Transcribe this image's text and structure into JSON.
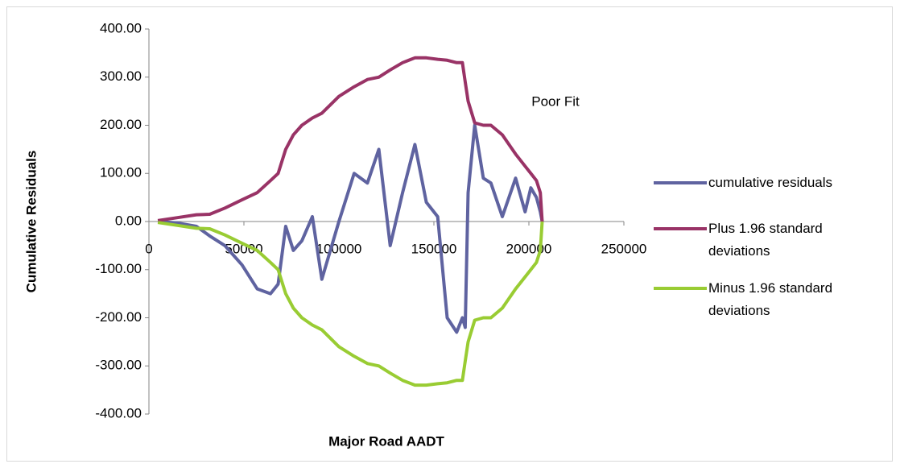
{
  "chart_data": {
    "type": "line",
    "x_label": "Major Road AADT",
    "y_label": "Cumulative Residuals",
    "annotations": [
      "Poor Fit"
    ],
    "legend": "right",
    "x": [
      4700,
      15000,
      25000,
      32000,
      40000,
      49000,
      57000,
      64000,
      68000,
      72000,
      76000,
      80500,
      86000,
      91000,
      100000,
      108000,
      115000,
      121000,
      127000,
      133500,
      140000,
      146000,
      152000,
      157000,
      162000,
      165000,
      166500,
      168000,
      171500,
      176000,
      180000,
      186000,
      193000,
      198000,
      201000,
      204000,
      206000,
      207000
    ],
    "series": [
      {
        "name": "cumulative residuals",
        "color": "#5f63a0",
        "values": [
          0,
          -3,
          -10,
          -30,
          -50,
          -90,
          -140,
          -150,
          -130,
          -10,
          -60,
          -40,
          10,
          -120,
          0,
          100,
          80,
          150,
          -50,
          60,
          160,
          40,
          10,
          -200,
          -230,
          -200,
          -220,
          60,
          200,
          90,
          80,
          10,
          90,
          20,
          70,
          50,
          20,
          0
        ]
      },
      {
        "name": "Plus 1.96 standard deviations",
        "color": "#993366",
        "values": [
          2,
          8,
          14,
          15,
          28,
          45,
          60,
          85,
          100,
          150,
          180,
          200,
          215,
          225,
          260,
          280,
          295,
          300,
          315,
          330,
          340,
          340,
          337,
          335,
          330,
          330,
          290,
          250,
          205,
          200,
          200,
          180,
          140,
          115,
          100,
          85,
          60,
          0
        ]
      },
      {
        "name": "Minus 1.96 standard deviations",
        "color": "#99cc33",
        "values": [
          -2,
          -8,
          -14,
          -15,
          -28,
          -45,
          -60,
          -85,
          -100,
          -150,
          -180,
          -200,
          -215,
          -225,
          -260,
          -280,
          -295,
          -300,
          -315,
          -330,
          -340,
          -340,
          -337,
          -335,
          -330,
          -330,
          -290,
          -250,
          -205,
          -200,
          -200,
          -180,
          -140,
          -115,
          -100,
          -85,
          -60,
          0
        ]
      }
    ],
    "xlim": [
      0,
      250000
    ],
    "xticks": [
      0,
      50000,
      100000,
      150000,
      200000,
      250000
    ],
    "ylim": [
      -400,
      400
    ],
    "yticks": [
      {
        "value": -400,
        "label": "-400.00"
      },
      {
        "value": -300,
        "label": "-300.00"
      },
      {
        "value": -200,
        "label": "-200.00"
      },
      {
        "value": -100,
        "label": "-100.00"
      },
      {
        "value": 0,
        "label": "0.00"
      },
      {
        "value": 100,
        "label": "100.00"
      },
      {
        "value": 200,
        "label": "200.00"
      },
      {
        "value": 300,
        "label": "300.00"
      },
      {
        "value": 400,
        "label": "400.00"
      }
    ],
    "grid": false
  }
}
